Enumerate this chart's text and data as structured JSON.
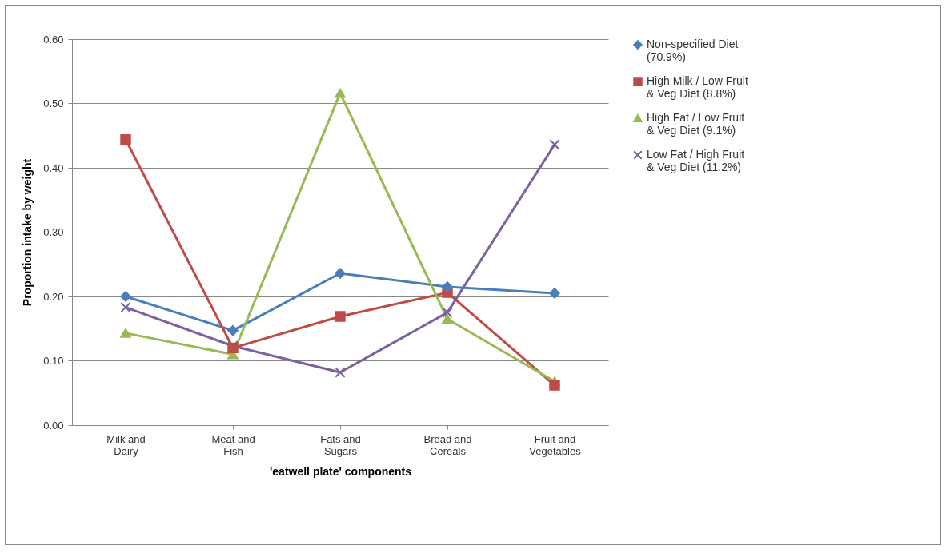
{
  "chart_data": {
    "type": "line",
    "xlabel": "'eatwell plate' components",
    "ylabel": "Proportion intake by weight",
    "categories": [
      "Milk and Dairy",
      "Meat and Fish",
      "Fats and Sugars",
      "Bread and Cereals",
      "Fruit and Vegetables"
    ],
    "ylim": [
      0,
      0.6
    ],
    "yticks": [
      {
        "value": 0,
        "label": "0.00"
      },
      {
        "value": 0.1,
        "label": "0.10"
      },
      {
        "value": 0.2,
        "label": "0.20"
      },
      {
        "value": 0.3,
        "label": "0.30"
      },
      {
        "value": 0.4,
        "label": "0.40"
      },
      {
        "value": 0.5,
        "label": "0.50"
      },
      {
        "value": 0.6,
        "label": "0.60"
      }
    ],
    "grid": "y",
    "legend": "right",
    "series": [
      {
        "name": "Non-specified Diet (70.9%)",
        "color": "#4a7ebb",
        "marker": "diamond",
        "values": [
          0.2,
          0.147,
          0.236,
          0.215,
          0.205
        ]
      },
      {
        "name": "High Milk / Low Fruit & Veg Diet (8.8%)",
        "color": "#be4b48",
        "marker": "square",
        "values": [
          0.444,
          0.12,
          0.169,
          0.206,
          0.062
        ]
      },
      {
        "name": "High Fat / Low Fruit & Veg Diet (9.1%)",
        "color": "#98b954",
        "marker": "triangle",
        "values": [
          0.143,
          0.11,
          0.516,
          0.165,
          0.068
        ]
      },
      {
        "name": "Low Fat / High Fruit & Veg Diet (11.2%)",
        "color": "#7d60a0",
        "marker": "cross",
        "values": [
          0.183,
          0.123,
          0.082,
          0.175,
          0.436
        ]
      }
    ]
  }
}
